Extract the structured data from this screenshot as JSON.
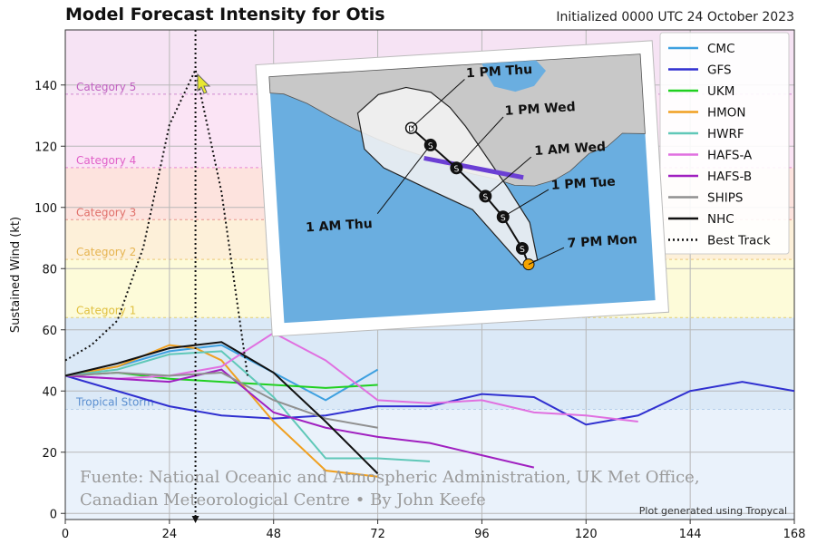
{
  "chart_data": {
    "type": "line",
    "title": "Model Forecast Intensity for Otis",
    "subtitle": "Initialized 0000 UTC 24 October 2023",
    "ylabel": "Sustained Wind (kt)",
    "xlabel": "",
    "xlim": [
      0,
      168
    ],
    "ylim": [
      -2,
      158
    ],
    "x_ticks": [
      0,
      24,
      48,
      72,
      96,
      120,
      144,
      168
    ],
    "y_ticks": [
      0,
      20,
      40,
      60,
      80,
      100,
      120,
      140
    ],
    "grid": true,
    "legend_position": "top-right",
    "categories_bands": [
      {
        "label": "Tropical Storm",
        "min": 34,
        "max": 64,
        "color": "#dbe9f7",
        "text_color": "#5b8fd0"
      },
      {
        "label": "Category 1",
        "min": 64,
        "max": 83,
        "color": "#fdfbd9",
        "text_color": "#e0c040"
      },
      {
        "label": "Category 2",
        "min": 83,
        "max": 96,
        "color": "#fdf0d9",
        "text_color": "#e6b450"
      },
      {
        "label": "Category 3",
        "min": 96,
        "max": 113,
        "color": "#fde3de",
        "text_color": "#e0706a"
      },
      {
        "label": "Category 4",
        "min": 113,
        "max": 137,
        "color": "#fbe4f5",
        "text_color": "#e060c8"
      },
      {
        "label": "Category 5",
        "min": 137,
        "max": 158,
        "color": "#f6e3f4",
        "text_color": "#c060c0"
      }
    ],
    "series": [
      {
        "name": "CMC",
        "color": "#3ea0e0",
        "style": "solid",
        "x": [
          0,
          12,
          24,
          36,
          48,
          60,
          72
        ],
        "y": [
          45,
          48,
          53,
          55,
          46,
          37,
          47
        ]
      },
      {
        "name": "GFS",
        "color": "#3030d0",
        "style": "solid",
        "x": [
          0,
          12,
          24,
          36,
          48,
          60,
          72,
          84,
          96,
          108,
          120,
          132,
          144,
          156,
          168
        ],
        "y": [
          45,
          40,
          35,
          32,
          31,
          32,
          35,
          35,
          39,
          38,
          29,
          32,
          40,
          43,
          40
        ]
      },
      {
        "name": "UKM",
        "color": "#20d020",
        "style": "solid",
        "x": [
          0,
          12,
          24,
          36,
          48,
          60,
          72
        ],
        "y": [
          45,
          46,
          44,
          43,
          42,
          41,
          42
        ]
      },
      {
        "name": "HMON",
        "color": "#f0a020",
        "style": "solid",
        "x": [
          0,
          12,
          24,
          30,
          36,
          42,
          48,
          60,
          72
        ],
        "y": [
          45,
          48,
          55,
          54,
          50,
          40,
          30,
          14,
          12
        ]
      },
      {
        "name": "HWRF",
        "color": "#60c8b8",
        "style": "solid",
        "x": [
          0,
          12,
          24,
          36,
          48,
          60,
          72,
          84
        ],
        "y": [
          45,
          47,
          52,
          53,
          38,
          18,
          18,
          17
        ]
      },
      {
        "name": "HAFS-A",
        "color": "#e070e0",
        "style": "solid",
        "x": [
          0,
          12,
          24,
          36,
          48,
          60,
          72,
          84,
          96,
          108,
          120,
          132
        ],
        "y": [
          45,
          44,
          45,
          48,
          59,
          50,
          37,
          36,
          37,
          33,
          32,
          30
        ]
      },
      {
        "name": "HAFS-B",
        "color": "#a020c0",
        "style": "solid",
        "x": [
          0,
          12,
          24,
          36,
          48,
          60,
          72,
          84,
          96,
          108
        ],
        "y": [
          45,
          44,
          43,
          47,
          33,
          28,
          25,
          23,
          19,
          15
        ]
      },
      {
        "name": "SHIPS",
        "color": "#909090",
        "style": "solid",
        "x": [
          0,
          12,
          24,
          36,
          48,
          60,
          72
        ],
        "y": [
          45,
          46,
          45,
          46,
          37,
          31,
          28
        ]
      },
      {
        "name": "NHC",
        "color": "#111111",
        "style": "solid",
        "x": [
          0,
          12,
          24,
          36,
          48,
          60,
          72
        ],
        "y": [
          45,
          49,
          54,
          56,
          46,
          30,
          13
        ]
      },
      {
        "name": "Best Track",
        "color": "#111111",
        "style": "dotted",
        "x": [
          0,
          6,
          12,
          18,
          24,
          30,
          36,
          42
        ],
        "y": [
          50,
          55,
          63,
          87,
          127,
          145,
          105,
          45
        ]
      }
    ]
  },
  "annotations": {
    "plot_note": "Plot generated using Tropycal",
    "source_line1": "Fuente: National Oceanic and Atmospheric Administration, UK Met Office,",
    "source_line2": "Canadian Meteorological Centre • By John Keefe"
  },
  "inset_map": {
    "labels": [
      "1 PM Thu",
      "1 PM Wed",
      "1 AM Wed",
      "1 PM Tue",
      "7 PM Mon",
      "1 AM Thu"
    ],
    "track_markers": [
      "D",
      "S",
      "S",
      "S",
      "S",
      "S"
    ],
    "colors": {
      "ocean": "#6aaee0",
      "land": "#c8c8c8",
      "cone": "#f2f2f2",
      "track": "#111111",
      "warning": "#6b3fd4",
      "start": "#f5a400"
    }
  }
}
